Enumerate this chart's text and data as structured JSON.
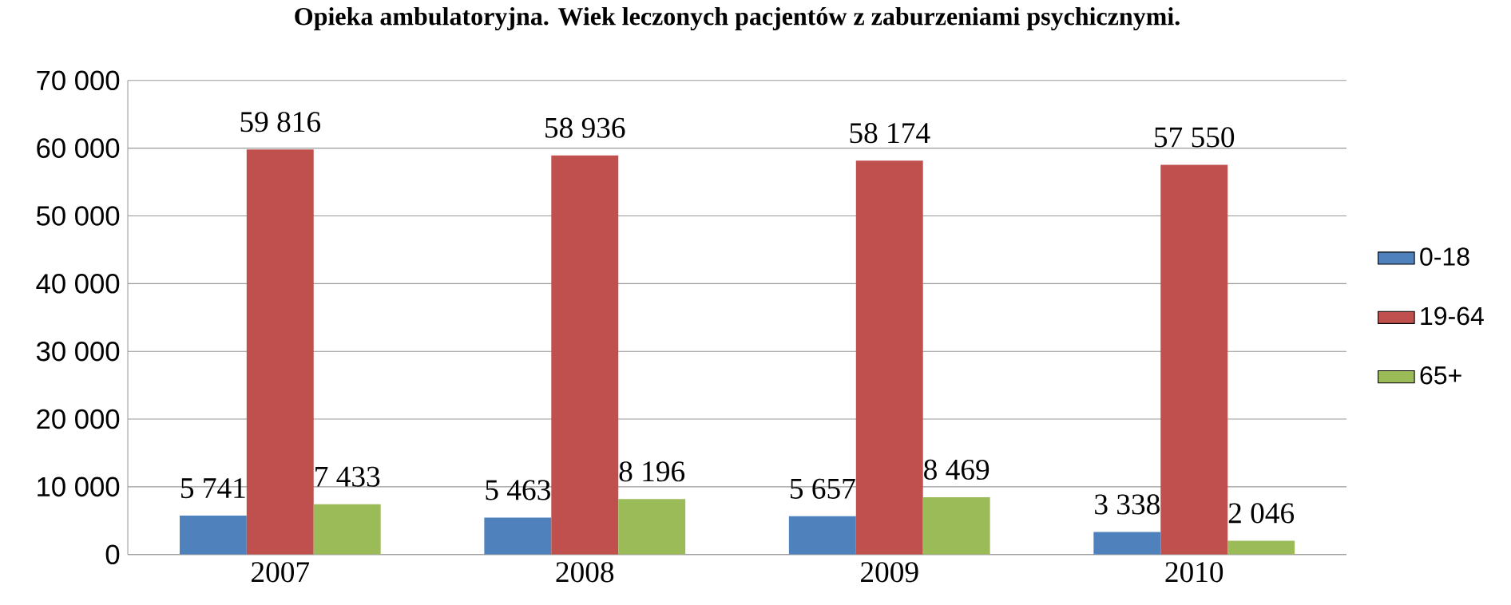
{
  "chart_data": {
    "type": "bar",
    "title": "Opieka ambulatoryjna. Wiek leczonych pacjentów z zaburzeniami psychicznymi.",
    "categories": [
      "2007",
      "2008",
      "2009",
      "2010"
    ],
    "series": [
      {
        "name": "0-18",
        "color": "#4f81bd",
        "values": [
          5741,
          5463,
          5657,
          3338
        ],
        "value_labels": [
          "5 741",
          "5 463",
          "5 657",
          "3 338"
        ]
      },
      {
        "name": "19-64",
        "color": "#c0504d",
        "values": [
          59816,
          58936,
          58174,
          57550
        ],
        "value_labels": [
          "59 816",
          "58 936",
          "58 174",
          "57 550"
        ]
      },
      {
        "name": "65+",
        "color": "#9bbb59",
        "values": [
          7433,
          8196,
          8469,
          2046
        ],
        "value_labels": [
          "7 433",
          "8 196",
          "8 469",
          "2 046"
        ]
      }
    ],
    "ylim": [
      0,
      70000
    ],
    "yticks": [
      0,
      {
        "value": 10000,
        "label": "10 000"
      },
      {
        "value": 20000,
        "label": "20 000"
      },
      {
        "value": 30000,
        "label": "30 000"
      },
      {
        "value": 40000,
        "label": "40 000"
      },
      {
        "value": 50000,
        "label": "50 000"
      },
      {
        "value": 60000,
        "label": "60 000"
      },
      {
        "value": 70000,
        "label": "70 000"
      }
    ],
    "grid": "y",
    "legend": "right"
  }
}
